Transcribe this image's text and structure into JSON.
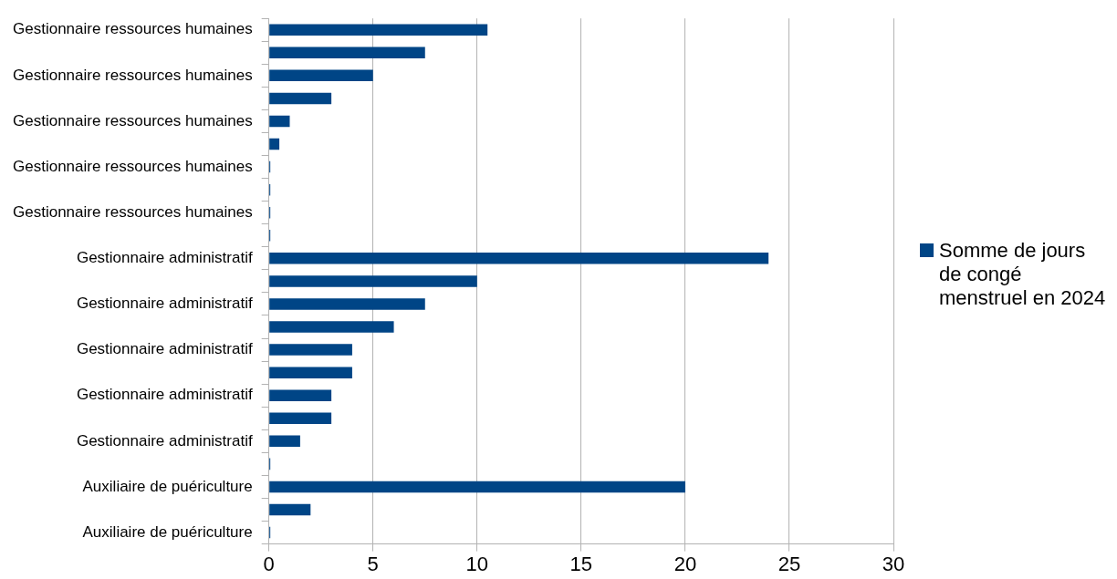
{
  "chart_data": {
    "type": "bar",
    "orientation": "horizontal",
    "categories": [
      "Gestionnaire ressources humaines",
      null,
      "Gestionnaire ressources humaines",
      null,
      "Gestionnaire ressources humaines",
      null,
      "Gestionnaire ressources humaines",
      null,
      "Gestionnaire ressources humaines",
      null,
      "Gestionnaire administratif",
      null,
      "Gestionnaire administratif",
      null,
      "Gestionnaire administratif",
      null,
      "Gestionnaire administratif",
      null,
      "Gestionnaire administratif",
      null,
      "Auxiliaire de puériculture",
      null,
      "Auxiliaire de puériculture"
    ],
    "series": [
      {
        "name": "Somme de jours de congé menstruel en 2024",
        "color": "#004586",
        "values": [
          10.5,
          7.5,
          5,
          3,
          1,
          0.5,
          0,
          0,
          0,
          0,
          24,
          10,
          7.5,
          6,
          4,
          4,
          3,
          3,
          1.5,
          0,
          20,
          2,
          0
        ]
      }
    ],
    "xlim": [
      0,
      30
    ],
    "xticks": [
      0,
      5,
      10,
      15,
      20,
      25,
      30
    ],
    "grid": "x",
    "legend": "right"
  }
}
